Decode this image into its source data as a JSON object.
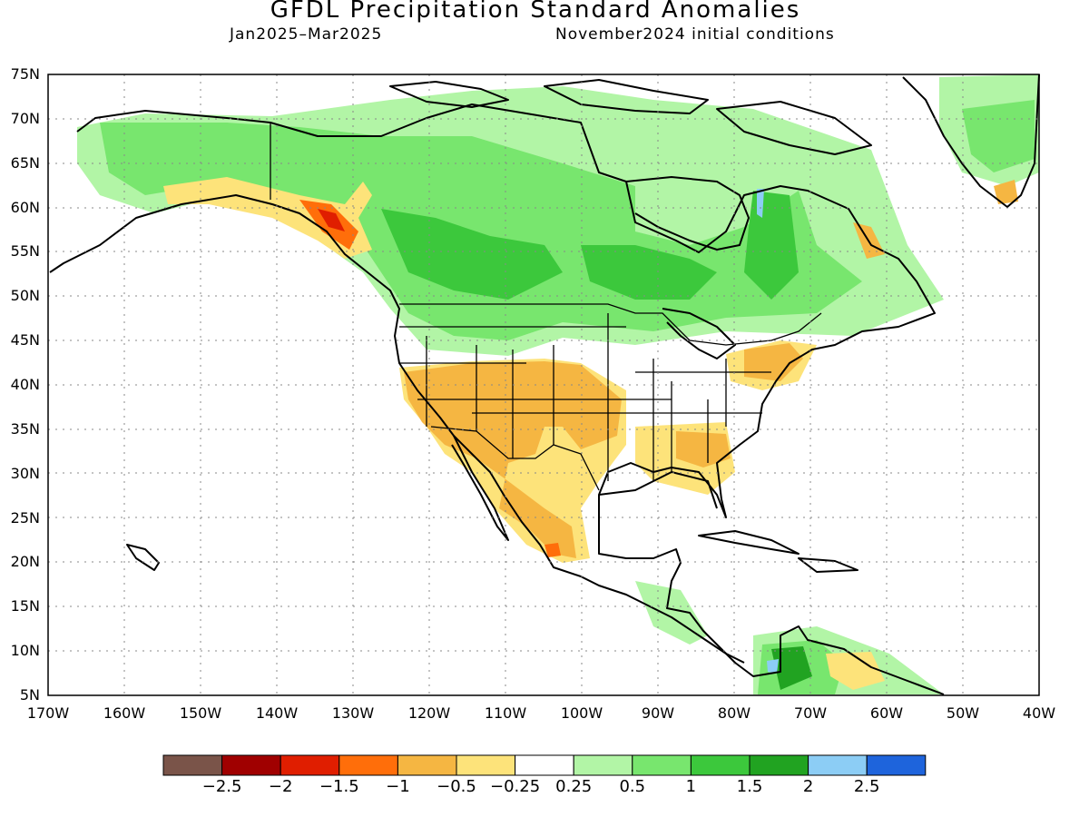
{
  "header": {
    "title": "GFDL Precipitation Standard Anomalies",
    "period": "Jan2025–Mar2025",
    "initial_conditions": "November2024 initial conditions"
  },
  "map": {
    "lat_labels": [
      "75N",
      "70N",
      "65N",
      "60N",
      "55N",
      "50N",
      "45N",
      "40N",
      "35N",
      "30N",
      "25N",
      "20N",
      "15N",
      "10N",
      "5N"
    ],
    "lon_labels": [
      "170W",
      "160W",
      "150W",
      "140W",
      "130W",
      "120W",
      "110W",
      "100W",
      "90W",
      "80W",
      "70W",
      "60W",
      "50W",
      "40W"
    ],
    "lat_range": [
      5,
      75
    ],
    "lon_range": [
      -170,
      -40
    ],
    "grid": "dotted",
    "land_color": "#ffffff",
    "coastline_color": "#000000"
  },
  "colorbar": {
    "colors": [
      "#7a5449",
      "#a00000",
      "#e01e00",
      "#ff6e0a",
      "#f5b642",
      "#fde37a",
      "#ffffff",
      "#b2f5a6",
      "#78e66e",
      "#3cc83c",
      "#21a321",
      "#8ccdf5",
      "#1e64dc"
    ],
    "labels": [
      "−2.5",
      "−2",
      "−1.5",
      "−1",
      "−0.5",
      "−0.25",
      "0.25",
      "0.5",
      "1",
      "1.5",
      "2",
      "2.5"
    ]
  }
}
